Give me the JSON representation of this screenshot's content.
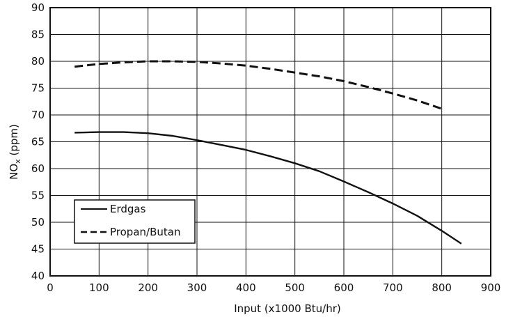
{
  "chart_data": {
    "type": "line",
    "xlabel": "Input  (x1000 Btu/hr)",
    "ylabel_main": "NO",
    "ylabel_sub": "x",
    "ylabel_unit": " (ppm)",
    "xlim": [
      0,
      900
    ],
    "ylim": [
      40,
      90
    ],
    "xticks": [
      0,
      100,
      200,
      300,
      400,
      500,
      600,
      700,
      800,
      900
    ],
    "yticks": [
      40,
      45,
      50,
      55,
      60,
      65,
      70,
      75,
      80,
      85,
      90
    ],
    "grid": true,
    "legend_position": "bottom-left",
    "series": [
      {
        "name": "Erdgas",
        "style": "solid",
        "x": [
          50,
          100,
          150,
          200,
          250,
          300,
          350,
          400,
          450,
          500,
          550,
          600,
          650,
          700,
          750,
          800,
          840
        ],
        "y": [
          66.7,
          66.8,
          66.8,
          66.6,
          66.1,
          65.3,
          64.4,
          63.5,
          62.3,
          61.0,
          59.5,
          57.6,
          55.6,
          53.5,
          51.2,
          48.4,
          46.0
        ]
      },
      {
        "name": "Propan/Butan",
        "style": "dashed",
        "x": [
          50,
          100,
          150,
          200,
          250,
          300,
          350,
          400,
          450,
          500,
          550,
          600,
          650,
          700,
          750,
          805
        ],
        "y": [
          79.0,
          79.5,
          79.8,
          80.0,
          80.0,
          79.9,
          79.6,
          79.2,
          78.6,
          77.9,
          77.2,
          76.3,
          75.2,
          74.0,
          72.7,
          71.0
        ]
      }
    ]
  }
}
